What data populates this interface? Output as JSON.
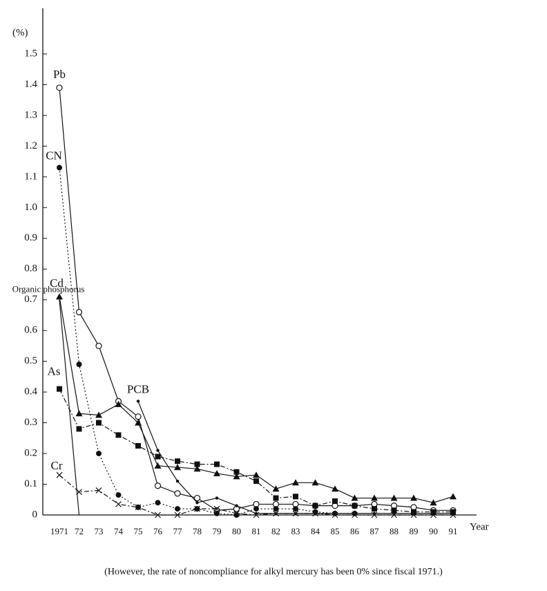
{
  "chart_data": {
    "type": "line",
    "y_label": "(%)",
    "x_label": "Year",
    "note": "(However, the rate of noncompliance for alkyl mercury has been 0% since fiscal 1971.)",
    "categories": [
      "1971",
      "72",
      "73",
      "74",
      "75",
      "76",
      "77",
      "78",
      "79",
      "80",
      "81",
      "82",
      "83",
      "84",
      "85",
      "86",
      "87",
      "88",
      "89",
      "90",
      "91"
    ],
    "ylim": [
      0,
      1.5
    ],
    "yticks": [
      0,
      0.1,
      0.2,
      0.3,
      0.4,
      0.5,
      0.6,
      0.7,
      0.8,
      0.9,
      {
        "value": 1,
        "label": "1.0"
      },
      1.1,
      1.2,
      1.3,
      1.4,
      1.5
    ],
    "series": [
      {
        "name": "Pb",
        "color": "#111",
        "marker": "open-circle",
        "dash": "solid",
        "values": [
          1.39,
          0.66,
          0.55,
          0.37,
          0.32,
          0.095,
          0.07,
          0.055,
          0.015,
          0.02,
          0.035,
          0.035,
          0.035,
          0.03,
          0.03,
          0.03,
          0.035,
          0.03,
          0.025,
          0.015,
          0.015
        ]
      },
      {
        "name": "CN",
        "color": "#111",
        "marker": "filled-circle",
        "dash": "dotted",
        "values": [
          1.13,
          0.49,
          0.2,
          0.065,
          0.025,
          0.04,
          0.02,
          0.02,
          0.005,
          0,
          0.02,
          0.02,
          0.02,
          0.01,
          0.005,
          0.005,
          null,
          null,
          null,
          null,
          null
        ]
      },
      {
        "name": "Cd",
        "color": "#111",
        "marker": "filled-triangle",
        "dash": "solid",
        "values": [
          0.71,
          0.33,
          0.325,
          0.36,
          0.3,
          0.16,
          0.155,
          0.15,
          0.135,
          0.125,
          0.13,
          0.085,
          0.105,
          0.105,
          0.085,
          0.055,
          0.055,
          0.055,
          0.055,
          0.04,
          0.06
        ]
      },
      {
        "name": "As",
        "color": "#111",
        "marker": "filled-square",
        "dash": "dashdot",
        "values": [
          0.41,
          0.28,
          0.3,
          0.26,
          0.225,
          0.19,
          0.175,
          0.165,
          0.165,
          0.14,
          0.11,
          0.055,
          0.06,
          0.03,
          0.045,
          0.03,
          0.02,
          0.015,
          0.01,
          0.01,
          0.01
        ]
      },
      {
        "name": "Organic phosphorus",
        "color": "#111",
        "marker": "none",
        "dash": "solid",
        "values": [
          0.7,
          0,
          null,
          null,
          null,
          null,
          null,
          null,
          null,
          null,
          null,
          null,
          null,
          null,
          null,
          null,
          null,
          null,
          null,
          null,
          null
        ]
      },
      {
        "name": "PCB",
        "color": "#111",
        "marker": "dot",
        "dash": "solid",
        "values": [
          null,
          null,
          null,
          null,
          0.37,
          0.21,
          0.11,
          0.04,
          0.055,
          0.03,
          0.005,
          0.005,
          0.005,
          0.005,
          0.005,
          0.005,
          0.005,
          0.005,
          0.005,
          0.005,
          0.005
        ]
      },
      {
        "name": "Cr",
        "color": "#111",
        "marker": "cross",
        "dash": "dashdot",
        "values": [
          0.13,
          0.075,
          0.08,
          0.035,
          0.025,
          0,
          0,
          0.02,
          0.02,
          0.005,
          0,
          0.005,
          0.005,
          0.005,
          0,
          0,
          0,
          0,
          0,
          0,
          0
        ]
      }
    ]
  }
}
